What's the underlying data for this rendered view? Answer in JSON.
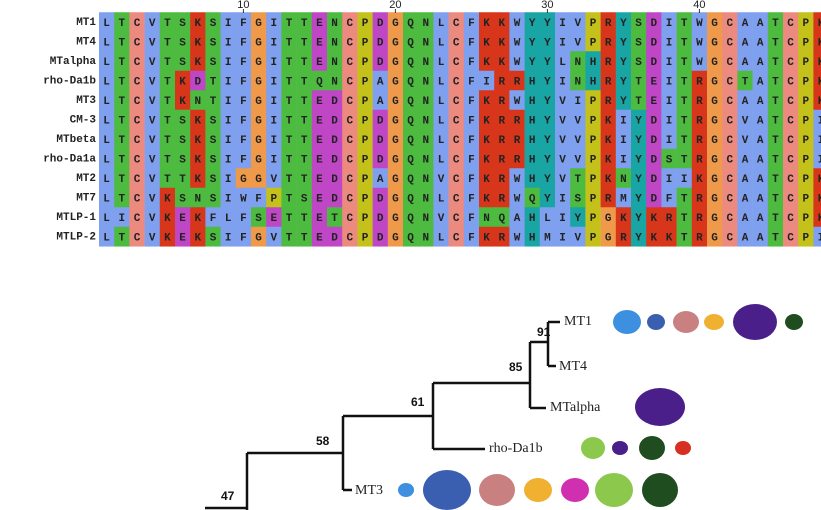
{
  "alignment": {
    "ruler": [
      10,
      20,
      30,
      40
    ],
    "rows": [
      {
        "name": "MT1",
        "sequence": "LTCVTSKSIFGITTENCPDGQNLCFKKWYYIVPRYSDITWGCAATCPKP"
      },
      {
        "name": "MT4",
        "sequence": "LTCVTSKSIFGITTENCPDGQNLCFKKWYYIVPRYSDITWGCAATCPKP"
      },
      {
        "name": "MTalpha",
        "sequence": "LTCVTSKSIFGITTENCPDGQNLCFKKWYYLNHRYSDITWGCAATCPKP"
      },
      {
        "name": "rho-Da1b",
        "sequence": "LTCVTKDTIFGITTQNCPAGQNLCFIRRHYINHRYTEITRGCTATCPKP"
      },
      {
        "name": "MT3",
        "sequence": "LTCVTKNTIFGITTEDCPAGQNLCFKRWHYVIPRYTEITRGCAATCPKP"
      },
      {
        "name": "CM-3",
        "sequence": "LTCVTSKSIFGITTEDCPDGQNLCFKRRHYVVPKIYDITRGCVATCPIP"
      },
      {
        "name": "MTbeta",
        "sequence": "LTCVTSKSIFGITTEDCPDGQNLCFKRRHYVVPKIYDITRGCVATCPIP"
      },
      {
        "name": "rho-Da1a",
        "sequence": "LTCVTSKSIFGITTEDCPDGQNLCFKRRHYVVPKIYDSTRGCAATCPIP"
      },
      {
        "name": "MT2",
        "sequence": "LTCVTTKSIGGVTTEDCPAGQNVCFKRWHYVTPKNYDIIKGCAATCPKV"
      },
      {
        "name": "MT7",
        "sequence": "LTCVKSNSIWFPTSEDCPDGQNLCFKRWQYISPRMYDFTRGCAATCPKA"
      },
      {
        "name": "MTLP-1",
        "sequence": "LICVKEKFLFSETTETCPDGQNVCFNQAHLIYPGKYKRTRGCAATCPKL"
      },
      {
        "name": "MTLP-2",
        "sequence": "LTCVKEKSIFGVTTEDCPDGQNLCFKRWHMIVPGRYKKTRGCAATCPIA"
      }
    ]
  },
  "tree": {
    "leaves": [
      "MT1",
      "MT4",
      "MTalpha",
      "rho-Da1b",
      "MT3"
    ],
    "bootstrap": [
      "91",
      "85",
      "61",
      "58",
      "47"
    ]
  }
}
